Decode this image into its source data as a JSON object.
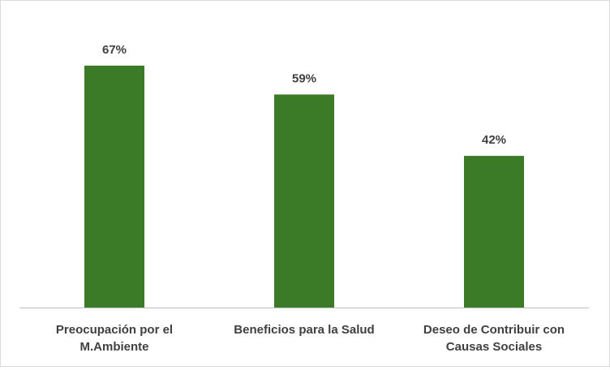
{
  "chart_data": {
    "type": "bar",
    "title": "",
    "xlabel": "",
    "ylabel": "",
    "categories": [
      [
        "Preocupación por el",
        "M.Ambiente"
      ],
      [
        "Beneficios para la Salud"
      ],
      [
        "Deseo de Contribuir con",
        "Causas Sociales"
      ]
    ],
    "values": [
      67,
      59,
      42
    ],
    "value_labels": [
      "67%",
      "59%",
      "42%"
    ],
    "unit": "%",
    "ylim": [
      0,
      70
    ],
    "grid": false,
    "legend": "none",
    "bar_color": "#3b7a27",
    "axis_color": "#bfbfbf",
    "label_color": "#404040"
  }
}
